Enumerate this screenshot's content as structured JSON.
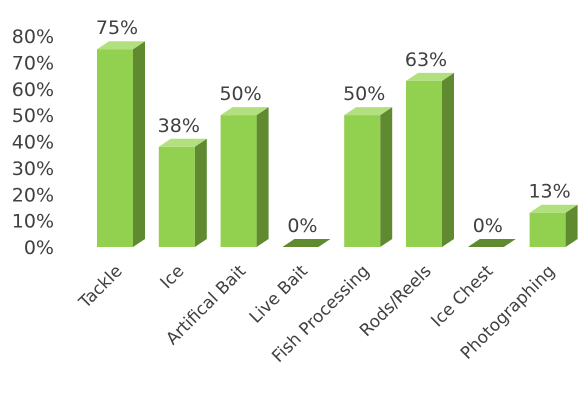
{
  "chart_data": {
    "type": "bar",
    "title": "",
    "xlabel": "",
    "ylabel": "",
    "categories": [
      "Tackle",
      "Ice",
      "Artifical Bait",
      "Live Bait",
      "Fish Processing",
      "Rods/Reels",
      "Ice Chest",
      "Photographing"
    ],
    "values": [
      75,
      38,
      50,
      0,
      50,
      63,
      0,
      13
    ],
    "data_labels": [
      "75%",
      "38%",
      "50%",
      "0%",
      "50%",
      "63%",
      "0%",
      "13%"
    ],
    "ylim": [
      0,
      80
    ],
    "y_ticks": [
      "0%",
      "10%",
      "20%",
      "30%",
      "40%",
      "50%",
      "60%",
      "70%",
      "80%"
    ],
    "grid": false,
    "legend": "none",
    "style": "3d-column",
    "colors": {
      "front": "#92d050",
      "side": "#5f8a30",
      "top": "#b3e07f"
    }
  }
}
